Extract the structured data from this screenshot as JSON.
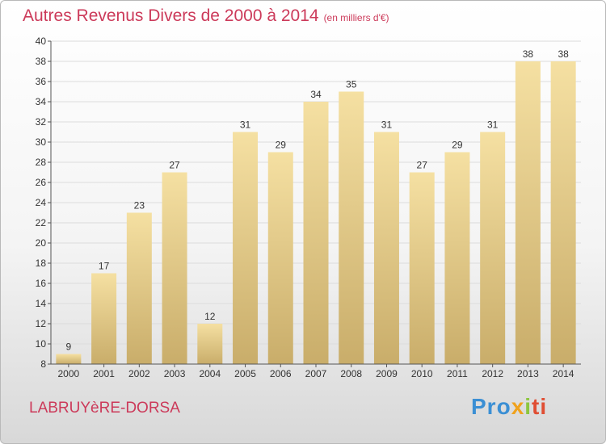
{
  "title": "Autres Revenus Divers de 2000 à 2014",
  "subtitle": "(en milliers d'€)",
  "town": "LABRUYèRE-DORSA",
  "logo": {
    "p1": "Pro",
    "p2": "x",
    "p3": "i",
    "p4": "ti"
  },
  "colors": {
    "title": "#cc3a5a",
    "bar_light": "#f5e0a2",
    "bar_dark": "#c9ad6a"
  },
  "chart_data": {
    "type": "bar",
    "categories": [
      "2000",
      "2001",
      "2002",
      "2003",
      "2004",
      "2005",
      "2006",
      "2007",
      "2008",
      "2009",
      "2010",
      "2011",
      "2012",
      "2013",
      "2014"
    ],
    "values": [
      9,
      17,
      23,
      27,
      12,
      31,
      29,
      34,
      35,
      31,
      27,
      29,
      31,
      38,
      38
    ],
    "title": "Autres Revenus Divers de 2000 à 2014",
    "subtitle": "(en milliers d'€)",
    "xlabel": "",
    "ylabel": "",
    "ylim": [
      8,
      40
    ],
    "yticks": [
      8,
      10,
      12,
      14,
      16,
      18,
      20,
      22,
      24,
      26,
      28,
      30,
      32,
      34,
      36,
      38,
      40
    ],
    "grid": true,
    "legend": "none"
  }
}
